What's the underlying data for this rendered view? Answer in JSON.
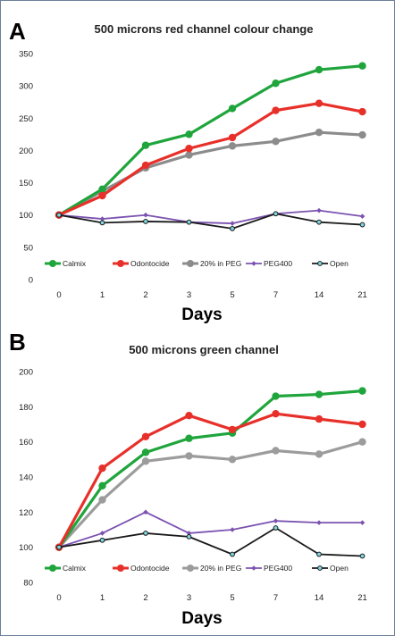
{
  "chart_data": [
    {
      "panel": "A",
      "type": "line",
      "title": "500 microns red channel colour change",
      "xlabel": "Days",
      "ylabel": "",
      "categories": [
        "0",
        "1",
        "2",
        "3",
        "5",
        "7",
        "14",
        "21"
      ],
      "ylim": [
        0,
        350
      ],
      "yticks": [
        0,
        50,
        100,
        150,
        200,
        250,
        300,
        350
      ],
      "grid": false,
      "legend": "bottom",
      "series": [
        {
          "name": "Calmix",
          "color": "#1fa53c",
          "values": [
            100,
            140,
            208,
            225,
            265,
            304,
            325,
            331
          ]
        },
        {
          "name": "Odontocide",
          "color": "#e8302a",
          "values": [
            100,
            130,
            177,
            203,
            220,
            262,
            273,
            260
          ]
        },
        {
          "name": "20% in PEG",
          "color": "#8c8c8c",
          "values": [
            100,
            137,
            173,
            193,
            207,
            214,
            228,
            224
          ]
        },
        {
          "name": "PEG400",
          "color": "#7b52b0",
          "values": [
            100,
            94,
            100,
            89,
            87,
            102,
            107,
            98
          ]
        },
        {
          "name": "Open",
          "color": "#1a1a1a",
          "values": [
            100,
            88,
            90,
            89,
            79,
            102,
            89,
            85
          ]
        }
      ]
    },
    {
      "panel": "B",
      "type": "line",
      "title": "500 microns green channel",
      "xlabel": "Days",
      "ylabel": "",
      "categories": [
        "0",
        "1",
        "2",
        "3",
        "5",
        "7",
        "14",
        "21"
      ],
      "ylim": [
        80,
        200
      ],
      "yticks": [
        80,
        100,
        120,
        140,
        160,
        180,
        200
      ],
      "grid": false,
      "legend": "bottom",
      "series": [
        {
          "name": "Calmix",
          "color": "#1fa53c",
          "values": [
            100,
            135,
            154,
            162,
            165,
            186,
            187,
            189
          ]
        },
        {
          "name": "Odontocide",
          "color": "#e8302a",
          "values": [
            100,
            145,
            163,
            175,
            167,
            176,
            173,
            170
          ]
        },
        {
          "name": "20% in PEG",
          "color": "#9c9c9c",
          "values": [
            100,
            127,
            149,
            152,
            150,
            155,
            153,
            160
          ]
        },
        {
          "name": "PEG400",
          "color": "#7b52b0",
          "values": [
            100,
            108,
            120,
            108,
            110,
            115,
            114,
            114
          ]
        },
        {
          "name": "Open",
          "color": "#1a1a1a",
          "values": [
            100,
            104,
            108,
            106,
            96,
            111,
            96,
            95
          ]
        }
      ]
    }
  ]
}
